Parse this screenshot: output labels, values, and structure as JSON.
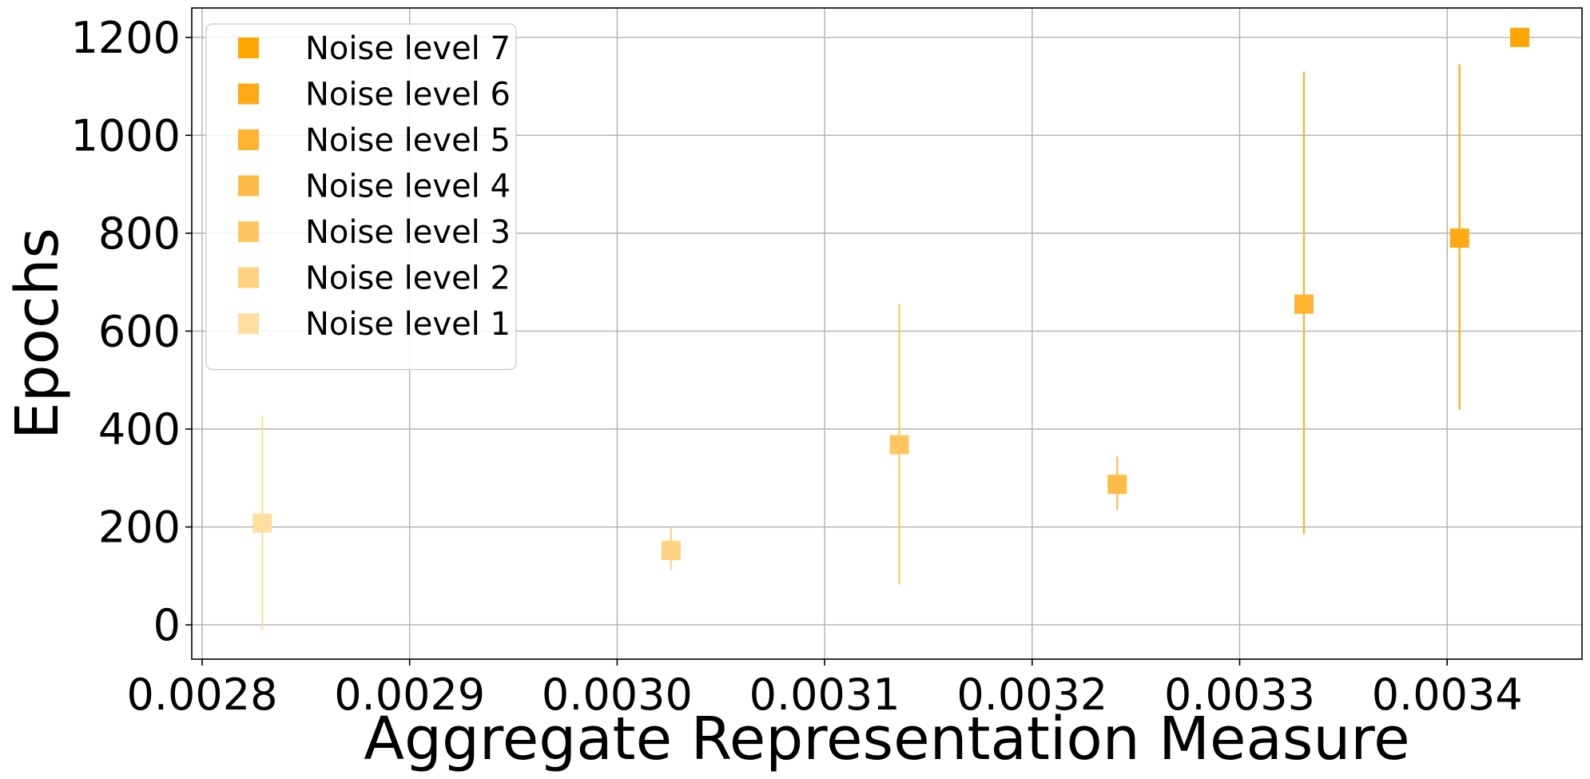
{
  "chart_data": {
    "type": "scatter",
    "title": "",
    "xlabel": "Aggregate Representation Measure",
    "ylabel": "Epochs",
    "xlim": [
      0.002795,
      0.003465
    ],
    "ylim": [
      -70,
      1260
    ],
    "xticks": [
      0.0028,
      0.0029,
      0.003,
      0.0031,
      0.0032,
      0.0033,
      0.0034
    ],
    "xtick_labels": [
      "0.0028",
      "0.0029",
      "0.0030",
      "0.0031",
      "0.0032",
      "0.0033",
      "0.0034"
    ],
    "yticks": [
      0,
      200,
      400,
      600,
      800,
      1000,
      1200
    ],
    "ytick_labels": [
      "0",
      "200",
      "400",
      "600",
      "800",
      "1000",
      "1200"
    ],
    "grid": true,
    "legend_position": "top-left",
    "marker": "square",
    "series": [
      {
        "name": "Noise level 7",
        "color": "#ffa500",
        "x": [
          0.003435
        ],
        "y": [
          1200
        ],
        "err_low": [
          0
        ],
        "err_high": [
          0
        ]
      },
      {
        "name": "Noise level 6",
        "color": "#ffaa14",
        "x": [
          0.003406
        ],
        "y": [
          790
        ],
        "err_low": [
          350
        ],
        "err_high": [
          355
        ]
      },
      {
        "name": "Noise level 5",
        "color": "#ffb22d",
        "x": [
          0.003331
        ],
        "y": [
          655
        ],
        "err_low": [
          470
        ],
        "err_high": [
          475
        ]
      },
      {
        "name": "Noise level 4",
        "color": "#ffbb47",
        "x": [
          0.003241
        ],
        "y": [
          287
        ],
        "err_low": [
          52
        ],
        "err_high": [
          57
        ]
      },
      {
        "name": "Noise level 3",
        "color": "#ffc65f",
        "x": [
          0.003136
        ],
        "y": [
          368
        ],
        "err_low": [
          285
        ],
        "err_high": [
          287
        ]
      },
      {
        "name": "Noise level 2",
        "color": "#ffd181",
        "x": [
          0.003026
        ],
        "y": [
          152
        ],
        "err_low": [
          40
        ],
        "err_high": [
          45
        ]
      },
      {
        "name": "Noise level 1",
        "color": "#ffde9f",
        "x": [
          0.002829
        ],
        "y": [
          208
        ],
        "err_low": [
          218
        ],
        "err_high": [
          218
        ]
      }
    ]
  }
}
